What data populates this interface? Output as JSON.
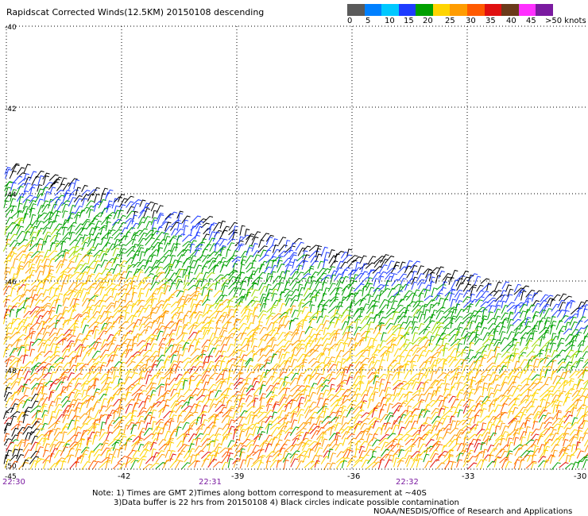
{
  "title": "Rapidscat Corrected Winds(12.5KM) 20150108 descending",
  "colorbar": {
    "colors": [
      "#5a5a5a",
      "#0080ff",
      "#00c8ff",
      "#1e3cff",
      "#00a000",
      "#ffd400",
      "#ff9c00",
      "#ff5a00",
      "#e01010",
      "#6b3a1a",
      "#ff30ff",
      "#7a1aa0"
    ],
    "labels": [
      "0",
      "5",
      "10",
      "15",
      "20",
      "25",
      "30",
      "35",
      "40",
      "45",
      ">50 knots"
    ]
  },
  "lat_labels": [
    "-40",
    "-42",
    "-44",
    "-46",
    "-48",
    "-50"
  ],
  "lon_labels": [
    "-42",
    "-39",
    "-36",
    "-33",
    "-30"
  ],
  "lon_edge_label": "-45",
  "time_labels": [
    "22:30",
    "22:31",
    "22:32"
  ],
  "notes": {
    "line1": "Note: 1) Times are GMT 2)Times along bottom correspond to measurement at ~40S",
    "line2": "3)Data buffer is 22 hrs from 20150108 4) Black circles indicate possible contamination",
    "line3": "NOAA/NESDIS/Office of Research and Applications"
  },
  "colors": {
    "grid": "#000000",
    "time_label": "#7a1aa0"
  }
}
